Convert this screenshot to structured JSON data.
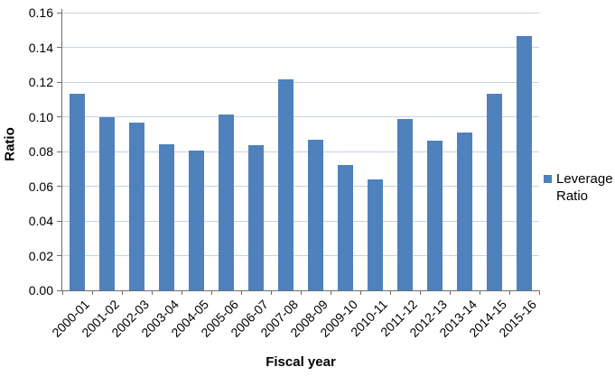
{
  "chart_data": {
    "type": "bar",
    "title": "",
    "xlabel": "Fiscal year",
    "ylabel": "Ratio",
    "categories": [
      "2000-01",
      "2001-02",
      "2002-03",
      "2003-04",
      "2004-05",
      "2005-06",
      "2006-07",
      "2007-08",
      "2008-09",
      "2009-10",
      "2010-11",
      "2011-12",
      "2012-13",
      "2013-14",
      "2014-15",
      "2015-16"
    ],
    "series": [
      {
        "name": "Leverage Ratio",
        "values": [
          0.113,
          0.1,
          0.0965,
          0.084,
          0.0805,
          0.1015,
          0.0835,
          0.1215,
          0.087,
          0.072,
          0.064,
          0.0985,
          0.086,
          0.091,
          0.113,
          0.1465
        ]
      }
    ],
    "ylim": [
      0,
      0.16
    ],
    "y_ticks": [
      0,
      0.02,
      0.04,
      0.06,
      0.08,
      0.1,
      0.12,
      0.14,
      0.16
    ],
    "y_tick_decimals": 2,
    "grid": "horizontal",
    "legend_position": "right"
  },
  "legend": {
    "label": "Leverage Ratio"
  },
  "colors": {
    "bar": "#4F81BD",
    "gridline": "#C4D3E8",
    "axis": "#6E6E6E",
    "text": "#000000"
  }
}
